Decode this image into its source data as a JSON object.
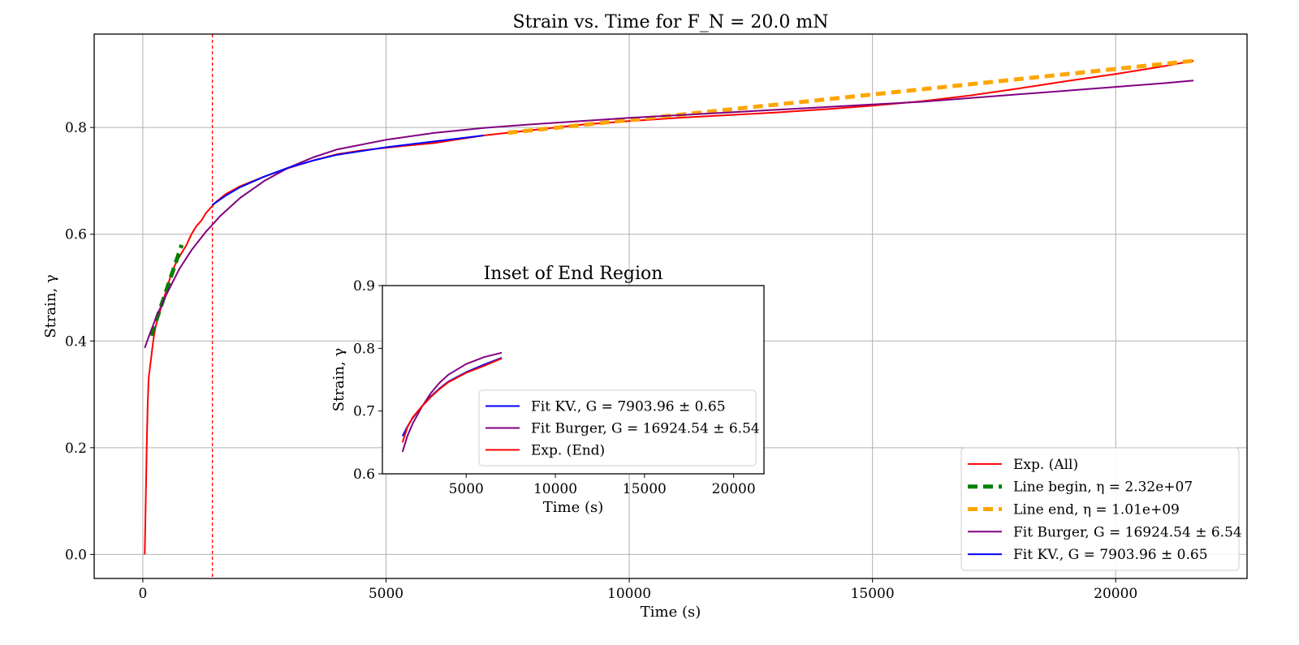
{
  "chart_data": [
    {
      "type": "line",
      "title": "Strain vs. Time for F_N = 20.0 mN",
      "xlabel": "Time (s)",
      "ylabel": "Strain, γ",
      "xlim": [
        -1000,
        22700
      ],
      "ylim": [
        -0.045,
        0.975
      ],
      "xticks": [
        0,
        5000,
        10000,
        15000,
        20000
      ],
      "yticks": [
        0.0,
        0.2,
        0.4,
        0.6,
        0.8
      ],
      "grid": true,
      "vline": {
        "x": 1430,
        "color": "#ff0000",
        "style": "dashed"
      },
      "legend_position": "lower right",
      "series": [
        {
          "name": "Exp. (All)",
          "color": "#ff0000",
          "x": [
            40,
            60,
            80,
            100,
            120,
            140,
            160,
            180,
            200,
            230,
            260,
            300,
            350,
            400,
            450,
            500,
            550,
            600,
            700,
            800,
            900,
            1000,
            1100,
            1200,
            1300,
            1400,
            1500,
            1700,
            2000,
            2500,
            3000,
            3500,
            4000,
            4500,
            5000,
            6000,
            7000,
            8000,
            9000,
            10000,
            11000,
            12000,
            13000,
            14000,
            15000,
            16000,
            17000,
            18000,
            19000,
            20000,
            21000,
            21600
          ],
          "y": [
            0.0,
            0.1,
            0.2,
            0.28,
            0.33,
            0.345,
            0.36,
            0.375,
            0.39,
            0.41,
            0.425,
            0.44,
            0.455,
            0.47,
            0.485,
            0.5,
            0.515,
            0.53,
            0.55,
            0.565,
            0.58,
            0.6,
            0.615,
            0.625,
            0.64,
            0.65,
            0.66,
            0.675,
            0.69,
            0.708,
            0.724,
            0.738,
            0.75,
            0.757,
            0.762,
            0.771,
            0.785,
            0.795,
            0.805,
            0.812,
            0.818,
            0.823,
            0.828,
            0.834,
            0.841,
            0.849,
            0.86,
            0.873,
            0.887,
            0.9,
            0.915,
            0.925
          ]
        },
        {
          "name": "Line begin, η = 2.32e+07",
          "color": "#008000",
          "x": [
            170,
            800
          ],
          "y": [
            0.41,
            0.58
          ]
        },
        {
          "name": "Line end, η = 1.01e+09",
          "color": "#ffa500",
          "x": [
            7500,
            21600
          ],
          "y": [
            0.79,
            0.925
          ]
        },
        {
          "name": "Fit Burger, G = 16924.54 ± 6.54",
          "color": "#800080",
          "x": [
            40,
            150,
            300,
            500,
            750,
            1000,
            1300,
            1600,
            2000,
            2500,
            3000,
            3500,
            4000,
            5000,
            6000,
            7000,
            8000,
            9000,
            10000,
            11000,
            12000,
            13000,
            14000,
            15000,
            16000,
            17000,
            18000,
            19000,
            20000,
            21000,
            21600
          ],
          "y": [
            0.387,
            0.415,
            0.45,
            0.49,
            0.535,
            0.57,
            0.605,
            0.635,
            0.668,
            0.7,
            0.725,
            0.744,
            0.759,
            0.777,
            0.79,
            0.799,
            0.806,
            0.812,
            0.818,
            0.823,
            0.828,
            0.833,
            0.838,
            0.843,
            0.848,
            0.855,
            0.862,
            0.869,
            0.876,
            0.883,
            0.888
          ]
        },
        {
          "name": "Fit KV., G = 7903.96 ± 0.65",
          "color": "#0000ff",
          "x": [
            1430,
            1700,
            2000,
            2500,
            3000,
            3500,
            4000,
            5000,
            6000,
            7000
          ],
          "y": [
            0.655,
            0.672,
            0.688,
            0.708,
            0.725,
            0.738,
            0.749,
            0.763,
            0.774,
            0.785
          ]
        }
      ]
    },
    {
      "type": "line",
      "title": "Inset of End Region",
      "xlabel": "Time (s)",
      "ylabel": "Strain, γ",
      "xlim": [
        300,
        21700
      ],
      "ylim": [
        0.6,
        0.9
      ],
      "xticks": [
        5000,
        10000,
        15000,
        20000
      ],
      "yticks": [
        0.6,
        0.7,
        0.8,
        0.9
      ],
      "grid": false,
      "legend_position": "lower right",
      "series": [
        {
          "name": "Fit KV., G = 7903.96 ± 0.65",
          "color": "#0000ff",
          "x": [
            1430,
            1700,
            2000,
            2500,
            3000,
            3500,
            4000,
            5000,
            6000,
            7000
          ],
          "y": [
            0.66,
            0.675,
            0.689,
            0.707,
            0.723,
            0.736,
            0.747,
            0.762,
            0.774,
            0.785
          ]
        },
        {
          "name": "Fit Burger, G = 16924.54 ± 6.54",
          "color": "#800080",
          "x": [
            1430,
            1700,
            2000,
            2500,
            3000,
            3500,
            4000,
            5000,
            6000,
            7000
          ],
          "y": [
            0.635,
            0.66,
            0.68,
            0.706,
            0.728,
            0.745,
            0.758,
            0.775,
            0.786,
            0.793
          ]
        },
        {
          "name": "Exp. (End)",
          "color": "#ff0000",
          "x": [
            1430,
            1700,
            2000,
            2500,
            3000,
            3500,
            4000,
            5000,
            6000,
            7000
          ],
          "y": [
            0.65,
            0.674,
            0.69,
            0.707,
            0.722,
            0.735,
            0.746,
            0.761,
            0.772,
            0.784
          ]
        }
      ]
    }
  ]
}
